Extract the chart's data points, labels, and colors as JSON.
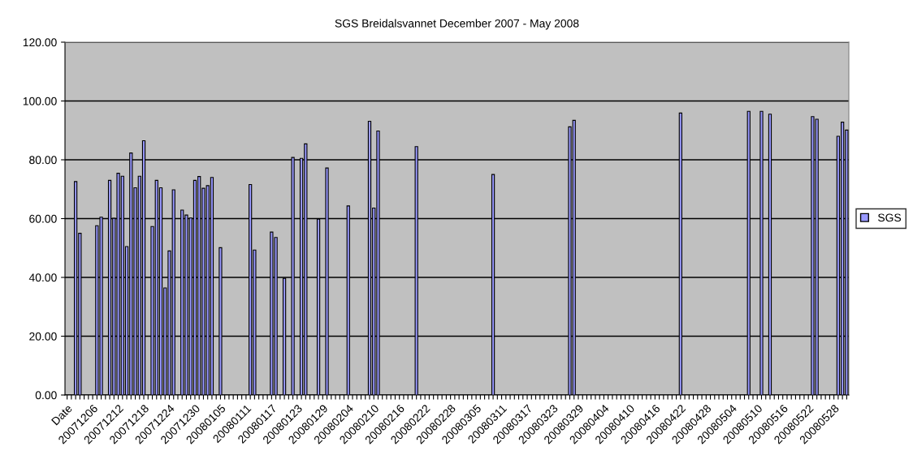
{
  "chart_data": {
    "type": "bar",
    "title": "SGS Breidalsvannet December 2007 - May 2008",
    "categories": [
      "Date",
      null,
      null,
      null,
      null,
      null,
      "20071206",
      null,
      null,
      null,
      null,
      null,
      "20071212",
      null,
      null,
      null,
      null,
      null,
      "20071218",
      null,
      null,
      null,
      null,
      null,
      "20071224",
      null,
      null,
      null,
      null,
      null,
      "20071230",
      null,
      null,
      null,
      null,
      null,
      "20080105",
      null,
      null,
      null,
      null,
      null,
      "20080111",
      null,
      null,
      null,
      null,
      null,
      "20080117",
      null,
      null,
      null,
      null,
      null,
      "20080123",
      null,
      null,
      null,
      null,
      null,
      "20080129",
      null,
      null,
      null,
      null,
      null,
      "20080204",
      null,
      null,
      null,
      null,
      null,
      "20080210",
      null,
      null,
      null,
      null,
      null,
      "20080216",
      null,
      null,
      null,
      null,
      null,
      "20080222",
      null,
      null,
      null,
      null,
      null,
      "20080228",
      null,
      null,
      null,
      null,
      null,
      "20080305",
      null,
      null,
      null,
      null,
      null,
      "20080311",
      null,
      null,
      null,
      null,
      null,
      "20080317",
      null,
      null,
      null,
      null,
      null,
      "20080323",
      null,
      null,
      null,
      null,
      null,
      "20080329",
      null,
      null,
      null,
      null,
      null,
      "20080404",
      null,
      null,
      null,
      null,
      null,
      "20080410",
      null,
      null,
      null,
      null,
      null,
      "20080416",
      null,
      null,
      null,
      null,
      null,
      "20080422",
      null,
      null,
      null,
      null,
      null,
      "20080428",
      null,
      null,
      null,
      null,
      null,
      "20080504",
      null,
      null,
      null,
      null,
      null,
      "20080510",
      null,
      null,
      null,
      null,
      null,
      "20080516",
      null,
      null,
      null,
      null,
      null,
      "20080522",
      null,
      null,
      null,
      null,
      null,
      "20080528",
      null,
      null,
      null
    ],
    "series": [
      {
        "name": "SGS",
        "color": "#9999ff",
        "values": [
          null,
          null,
          72.6,
          55.0,
          null,
          null,
          null,
          57.6,
          60.5,
          null,
          73.0,
          60.1,
          75.4,
          74.4,
          50.5,
          82.3,
          70.5,
          74.4,
          86.5,
          null,
          57.3,
          73.0,
          70.5,
          36.4,
          49.0,
          69.8,
          null,
          62.9,
          61.2,
          60.2,
          73.0,
          74.3,
          70.3,
          71.2,
          74.0,
          null,
          50.1,
          null,
          null,
          null,
          null,
          null,
          null,
          71.6,
          49.3,
          null,
          null,
          null,
          55.4,
          53.6,
          null,
          39.7,
          null,
          80.8,
          null,
          80.5,
          85.4,
          null,
          null,
          59.8,
          null,
          77.2,
          null,
          null,
          null,
          null,
          64.3,
          null,
          null,
          null,
          null,
          93.1,
          63.6,
          89.8,
          null,
          null,
          null,
          null,
          null,
          null,
          null,
          null,
          84.5,
          null,
          null,
          null,
          null,
          null,
          null,
          null,
          null,
          null,
          null,
          null,
          null,
          null,
          null,
          null,
          null,
          null,
          75.0,
          null,
          null,
          null,
          null,
          null,
          null,
          null,
          null,
          null,
          null,
          null,
          null,
          null,
          null,
          null,
          null,
          null,
          91.2,
          93.4,
          null,
          null,
          null,
          null,
          null,
          null,
          null,
          null,
          null,
          null,
          null,
          null,
          null,
          null,
          null,
          null,
          null,
          null,
          null,
          null,
          null,
          null,
          null,
          null,
          95.9,
          null,
          null,
          null,
          null,
          null,
          null,
          null,
          null,
          null,
          null,
          null,
          null,
          null,
          null,
          null,
          96.5,
          null,
          null,
          96.5,
          null,
          95.5,
          null,
          null,
          null,
          null,
          null,
          null,
          null,
          null,
          null,
          94.7,
          93.8,
          null,
          null,
          null,
          null,
          88.0,
          92.8,
          90.1
        ]
      }
    ],
    "ylim": [
      0,
      120
    ],
    "yticks": [
      {
        "value": 0,
        "label": "0.00"
      },
      {
        "value": 20,
        "label": "20.00"
      },
      {
        "value": 40,
        "label": "40.00"
      },
      {
        "value": 60,
        "label": "60.00"
      },
      {
        "value": 80,
        "label": "80.00"
      },
      {
        "value": 100,
        "label": "100.00"
      },
      {
        "value": 120,
        "label": "120.00"
      }
    ],
    "grid": "y",
    "legend": "right"
  }
}
